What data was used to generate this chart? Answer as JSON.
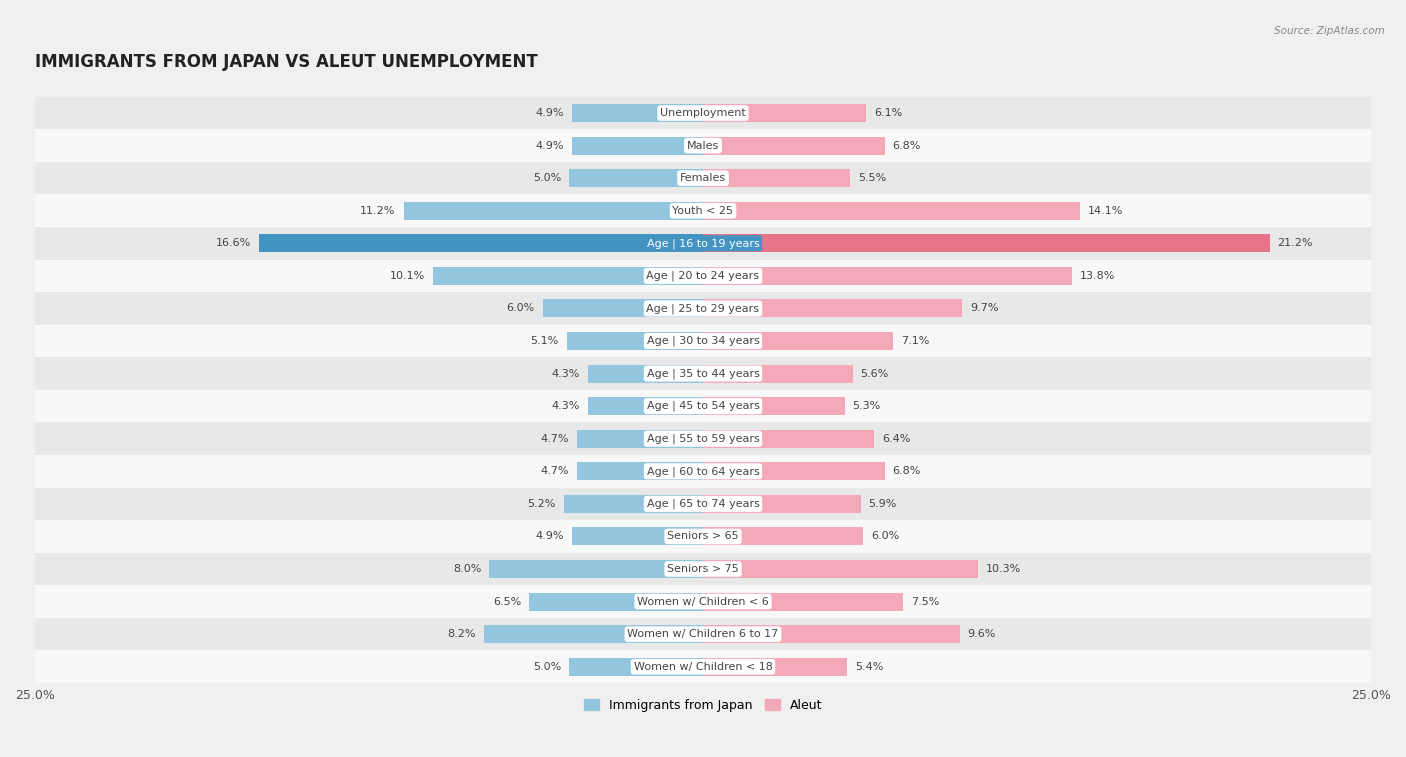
{
  "title": "IMMIGRANTS FROM JAPAN VS ALEUT UNEMPLOYMENT",
  "source": "Source: ZipAtlas.com",
  "categories": [
    "Unemployment",
    "Males",
    "Females",
    "Youth < 25",
    "Age | 16 to 19 years",
    "Age | 20 to 24 years",
    "Age | 25 to 29 years",
    "Age | 30 to 34 years",
    "Age | 35 to 44 years",
    "Age | 45 to 54 years",
    "Age | 55 to 59 years",
    "Age | 60 to 64 years",
    "Age | 65 to 74 years",
    "Seniors > 65",
    "Seniors > 75",
    "Women w/ Children < 6",
    "Women w/ Children 6 to 17",
    "Women w/ Children < 18"
  ],
  "japan_values": [
    4.9,
    4.9,
    5.0,
    11.2,
    16.6,
    10.1,
    6.0,
    5.1,
    4.3,
    4.3,
    4.7,
    4.7,
    5.2,
    4.9,
    8.0,
    6.5,
    8.2,
    5.0
  ],
  "aleut_values": [
    6.1,
    6.8,
    5.5,
    14.1,
    21.2,
    13.8,
    9.7,
    7.1,
    5.6,
    5.3,
    6.4,
    6.8,
    5.9,
    6.0,
    10.3,
    7.5,
    9.6,
    5.4
  ],
  "japan_color": "#92c5de",
  "aleut_color": "#f4a9b8",
  "bar_height": 0.55,
  "max_val": 25.0,
  "background_color": "#f0f0f0",
  "row_bg_light": "#f8f8f8",
  "row_bg_dark": "#e8e8e8",
  "title_fontsize": 12,
  "label_fontsize": 8.0,
  "value_fontsize": 8.0,
  "legend_fontsize": 9,
  "label_box_color": "#ffffff",
  "highlight_japan_color": "#4393c3",
  "highlight_aleut_color": "#e8748a",
  "highlight_row": 4
}
